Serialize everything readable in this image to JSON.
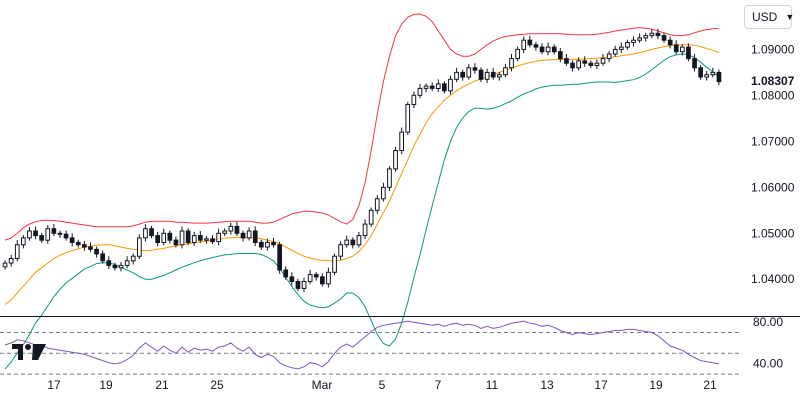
{
  "currency_selector": {
    "value": "USD",
    "icon": "chevron-down-icon"
  },
  "logo": {
    "name": "tradingview-logo"
  },
  "price_axis": {
    "ticks": [
      "1.09000",
      "1.08000",
      "1.07000",
      "1.06000",
      "1.05000",
      "1.04000"
    ],
    "last_price": "1.08307"
  },
  "rsi_axis": {
    "ticks": [
      "80.00",
      "40.00"
    ]
  },
  "time_axis": {
    "ticks": [
      "17",
      "19",
      "21",
      "25",
      "Mar",
      "5",
      "7",
      "11",
      "13",
      "17",
      "19",
      "21"
    ]
  },
  "colors": {
    "up": "#131722",
    "down": "#131722",
    "upper_band": "#f23645",
    "basis": "#ff9800",
    "lower_band": "#089981",
    "rsi_line": "#7e57c2",
    "grid_text": "#131722",
    "divider": "#131722"
  },
  "chart_data": [
    {
      "type": "candlestick",
      "ylim": [
        1.032,
        1.099
      ],
      "x_ticks": [
        "17",
        "19",
        "21",
        "25",
        "Mar",
        "5",
        "7",
        "11",
        "13",
        "17",
        "19",
        "21"
      ],
      "close": [
        1.0435,
        1.0445,
        1.0475,
        1.049,
        1.0505,
        1.0495,
        1.0485,
        1.051,
        1.05,
        1.0498,
        1.049,
        1.048,
        1.0475,
        1.047,
        1.0465,
        1.0455,
        1.044,
        1.043,
        1.0425,
        1.043,
        1.044,
        1.045,
        1.049,
        1.051,
        1.0495,
        1.048,
        1.05,
        1.0485,
        1.0475,
        1.0505,
        1.048,
        1.0495,
        1.0485,
        1.0488,
        1.0482,
        1.05,
        1.0505,
        1.0515,
        1.05,
        1.049,
        1.0505,
        1.048,
        1.047,
        1.048,
        1.0475,
        1.042,
        1.0405,
        1.0395,
        1.038,
        1.0395,
        1.041,
        1.0405,
        1.039,
        1.0415,
        1.045,
        1.0475,
        1.0485,
        1.0475,
        1.0495,
        1.052,
        1.055,
        1.0575,
        1.06,
        1.064,
        1.068,
        1.072,
        1.078,
        1.08,
        1.0815,
        1.082,
        1.0815,
        1.0825,
        1.081,
        1.0835,
        1.085,
        1.084,
        1.086,
        1.0855,
        1.0835,
        1.085,
        1.084,
        1.0845,
        1.086,
        1.088,
        1.09,
        1.092,
        1.091,
        1.0905,
        1.0895,
        1.0905,
        1.0895,
        1.088,
        1.087,
        1.086,
        1.0875,
        1.087,
        1.0865,
        1.087,
        1.088,
        1.089,
        1.09,
        1.0905,
        1.0915,
        1.092,
        1.0925,
        1.093,
        1.0935,
        1.093,
        1.092,
        1.091,
        1.0895,
        1.0905,
        1.088,
        1.086,
        1.084,
        1.0845,
        1.085,
        1.083
      ],
      "upper_band": [
        1.0485,
        1.049,
        1.05,
        1.0512,
        1.052,
        1.0525,
        1.0528,
        1.0528,
        1.0528,
        1.0526,
        1.0524,
        1.0522,
        1.052,
        1.0518,
        1.0516,
        1.0514,
        1.0514,
        1.0514,
        1.0514,
        1.0514,
        1.0514,
        1.0516,
        1.052,
        1.0524,
        1.0526,
        1.0526,
        1.0526,
        1.0526,
        1.0524,
        1.0524,
        1.0523,
        1.0522,
        1.0522,
        1.0522,
        1.0523,
        1.0524,
        1.0525,
        1.0526,
        1.0526,
        1.0526,
        1.0526,
        1.0524,
        1.0522,
        1.0522,
        1.0524,
        1.053,
        1.0536,
        1.0542,
        1.0545,
        1.0548,
        1.0548,
        1.0546,
        1.0544,
        1.054,
        1.0532,
        1.0525,
        1.052,
        1.053,
        1.056,
        1.061,
        1.068,
        1.076,
        1.083,
        1.0885,
        1.093,
        1.0955,
        1.097,
        1.0976,
        1.0977,
        1.0972,
        1.096,
        1.094,
        1.092,
        1.09,
        1.089,
        1.0885,
        1.0885,
        1.089,
        1.09,
        1.091,
        1.0918,
        1.0924,
        1.0928,
        1.093,
        1.0932,
        1.0933,
        1.0934,
        1.0934,
        1.0934,
        1.0934,
        1.0934,
        1.0934,
        1.0933,
        1.0932,
        1.0932,
        1.0932,
        1.0932,
        1.0933,
        1.0935,
        1.0937,
        1.094,
        1.0942,
        1.0944,
        1.0946,
        1.0947,
        1.0946,
        1.0944,
        1.094,
        1.0936,
        1.0932,
        1.093,
        1.093,
        1.0932,
        1.0936,
        1.094,
        1.0943,
        1.0945,
        1.0946
      ],
      "basis": [
        1.0345,
        1.0355,
        1.037,
        1.0385,
        1.04,
        1.0415,
        1.0425,
        1.0435,
        1.0445,
        1.0452,
        1.0458,
        1.0462,
        1.0466,
        1.047,
        1.0472,
        1.0474,
        1.0475,
        1.0475,
        1.0473,
        1.047,
        1.0467,
        1.0465,
        1.0463,
        1.0462,
        1.0463,
        1.0465,
        1.0467,
        1.047,
        1.0472,
        1.0475,
        1.0477,
        1.0479,
        1.0481,
        1.0483,
        1.0485,
        1.0487,
        1.0489,
        1.049,
        1.0491,
        1.0491,
        1.0491,
        1.049,
        1.0488,
        1.0485,
        1.0482,
        1.0477,
        1.047,
        1.0463,
        1.0456,
        1.045,
        1.0446,
        1.0443,
        1.0441,
        1.044,
        1.044,
        1.0441,
        1.0445,
        1.045,
        1.046,
        1.0475,
        1.0495,
        1.052,
        1.0545,
        1.057,
        1.06,
        1.063,
        1.066,
        1.069,
        1.0715,
        1.074,
        1.076,
        1.0775,
        1.079,
        1.08,
        1.081,
        1.0818,
        1.0825,
        1.0831,
        1.0836,
        1.084,
        1.0845,
        1.085,
        1.0855,
        1.0859,
        1.0864,
        1.0868,
        1.0871,
        1.0874,
        1.0876,
        1.0877,
        1.0878,
        1.0878,
        1.0878,
        1.0878,
        1.0878,
        1.0879,
        1.088,
        1.0881,
        1.0882,
        1.0883,
        1.0884,
        1.0886,
        1.0888,
        1.089,
        1.0893,
        1.0896,
        1.09,
        1.0903,
        1.0906,
        1.0908,
        1.0909,
        1.091,
        1.091,
        1.0909,
        1.0906,
        1.0902,
        1.0898,
        1.0893
      ],
      "lower_band": [
        1.0205,
        1.022,
        1.024,
        1.0258,
        1.028,
        1.0305,
        1.0322,
        1.0342,
        1.0362,
        1.0378,
        1.0392,
        1.0402,
        1.0412,
        1.0422,
        1.0428,
        1.0434,
        1.0436,
        1.0436,
        1.0432,
        1.0426,
        1.042,
        1.0414,
        1.0406,
        1.04,
        1.04,
        1.0404,
        1.0408,
        1.0414,
        1.042,
        1.0426,
        1.0431,
        1.0436,
        1.044,
        1.0444,
        1.0447,
        1.045,
        1.0453,
        1.0454,
        1.0456,
        1.0456,
        1.0456,
        1.0456,
        1.0454,
        1.0448,
        1.044,
        1.0424,
        1.0404,
        1.0384,
        1.0367,
        1.0352,
        1.0344,
        1.034,
        1.0338,
        1.034,
        1.0348,
        1.0357,
        1.037,
        1.037,
        1.036,
        1.034,
        1.031,
        1.028,
        1.026,
        1.0255,
        1.027,
        1.0305,
        1.035,
        1.0404,
        1.0453,
        1.0508,
        1.056,
        1.061,
        1.066,
        1.07,
        1.073,
        1.0751,
        1.0765,
        1.0772,
        1.0772,
        1.077,
        1.0772,
        1.0776,
        1.0782,
        1.0788,
        1.0796,
        1.0803,
        1.0808,
        1.0814,
        1.0818,
        1.082,
        1.0822,
        1.0822,
        1.0823,
        1.0824,
        1.0824,
        1.0826,
        1.0828,
        1.0829,
        1.0829,
        1.0829,
        1.0828,
        1.083,
        1.0832,
        1.0834,
        1.0839,
        1.0846,
        1.0856,
        1.0866,
        1.0876,
        1.0884,
        1.0888,
        1.089,
        1.0888,
        1.0882,
        1.0872,
        1.0861,
        1.0851,
        1.084
      ],
      "last_price": 1.08307
    },
    {
      "type": "line",
      "title": "",
      "ylim": [
        32,
        84
      ],
      "y_ticks": [
        80,
        40
      ],
      "guide_levels": [
        70,
        50,
        30
      ],
      "series": [
        {
          "values": [
            58,
            60,
            63,
            62,
            60,
            58,
            57,
            55,
            54,
            53,
            52,
            51,
            50,
            49,
            47,
            45,
            43,
            41,
            40,
            41,
            44,
            48,
            55,
            60,
            56,
            52,
            57,
            53,
            50,
            56,
            51,
            55,
            53,
            54,
            52,
            56,
            57,
            60,
            55,
            52,
            56,
            49,
            46,
            49,
            47,
            41,
            38,
            36,
            35,
            37,
            41,
            40,
            37,
            42,
            50,
            56,
            59,
            56,
            61,
            66,
            71,
            75,
            77,
            78,
            79,
            80,
            81,
            80,
            79,
            78,
            77,
            78,
            76,
            78,
            79,
            77,
            78,
            77,
            74,
            76,
            74,
            75,
            77,
            79,
            80,
            81,
            79,
            78,
            76,
            77,
            75,
            72,
            70,
            68,
            70,
            69,
            68,
            69,
            70,
            71,
            72,
            72,
            73,
            73,
            72,
            71,
            70,
            67,
            62,
            57,
            55,
            53,
            49,
            46,
            43,
            42,
            41,
            40
          ]
        }
      ]
    }
  ]
}
